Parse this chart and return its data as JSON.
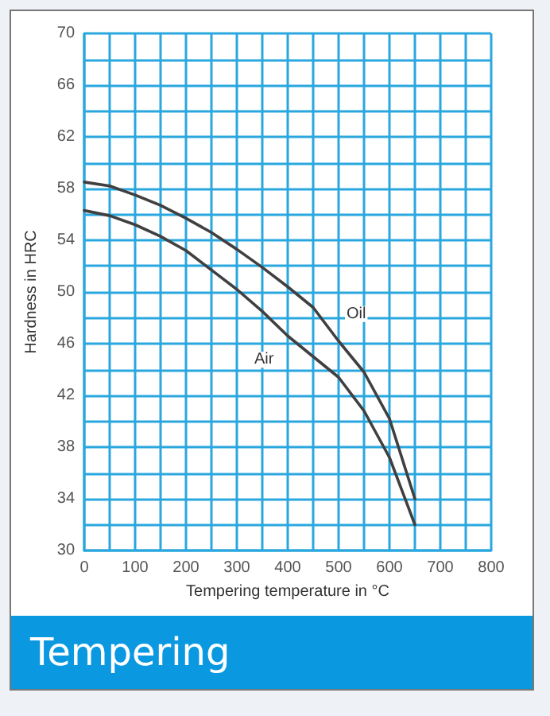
{
  "chart_data": {
    "type": "line",
    "title": "Tempering",
    "xlabel": "Tempering temperature in °C",
    "ylabel": "Hardness in HRC",
    "xlim": [
      0,
      800
    ],
    "xticks": [
      0,
      {
        "value": 50,
        "label": null
      },
      100,
      {
        "value": 150,
        "label": null
      },
      200,
      {
        "value": 250,
        "label": null
      },
      300,
      {
        "value": 350,
        "label": null
      },
      400,
      {
        "value": 450,
        "label": null
      },
      500,
      {
        "value": 550,
        "label": null
      },
      600,
      {
        "value": 650,
        "label": null
      },
      700,
      {
        "value": 750,
        "label": null
      },
      800
    ],
    "ylim": [
      30,
      70
    ],
    "yticks": [
      30,
      {
        "value": 32,
        "label": null
      },
      34,
      {
        "value": 36,
        "label": null
      },
      38,
      {
        "value": 40,
        "label": null
      },
      42,
      {
        "value": 44,
        "label": null
      },
      46,
      {
        "value": 48,
        "label": null
      },
      50,
      {
        "value": 52,
        "label": null
      },
      54,
      {
        "value": 56,
        "label": null
      },
      58,
      {
        "value": 60,
        "label": null
      },
      62,
      {
        "value": 64,
        "label": null
      },
      66,
      {
        "value": 68,
        "label": null
      },
      70
    ],
    "grid": true,
    "marker": "none",
    "line_style": "solid",
    "x": [
      0,
      50,
      100,
      150,
      200,
      250,
      300,
      350,
      400,
      450,
      500,
      550,
      600,
      650
    ],
    "series": [
      {
        "name": "Oil",
        "color": "#404040",
        "values": [
          58.5,
          58.2,
          57.5,
          56.7,
          55.7,
          54.6,
          53.3,
          51.9,
          50.4,
          48.8,
          46.2,
          43.8,
          40.2,
          34
        ]
      },
      {
        "name": "Air",
        "color": "#404040",
        "values": [
          56.3,
          55.9,
          55.2,
          54.3,
          53.2,
          51.7,
          50.2,
          48.5,
          46.6,
          45.0,
          43.4,
          40.8,
          37.2,
          32
        ]
      }
    ]
  }
}
